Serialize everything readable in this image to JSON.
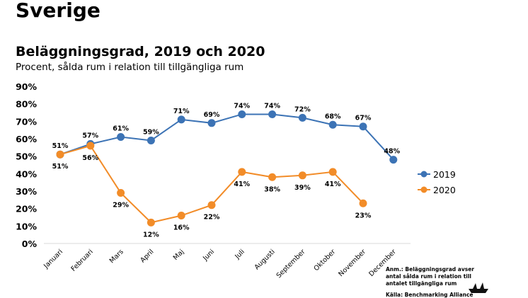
{
  "page": {
    "title": "Sverige",
    "note": "Anm.: Beläggningsgrad avser antal sålda rum i relation till antalet tillgängliga rum",
    "source": "Källa: Benchmarking Alliance"
  },
  "chart_data": {
    "type": "line",
    "title": "Beläggningsgrad, 2019 och 2020",
    "subtitle": "Procent, sålda rum i relation till tillgängliga rum",
    "categories": [
      "Januari",
      "Februari",
      "Mars",
      "April",
      "Maj",
      "Juni",
      "Juli",
      "Augusti",
      "September",
      "Oktober",
      "November",
      "December"
    ],
    "yticks": [
      "0%",
      "10%",
      "20%",
      "30%",
      "40%",
      "50%",
      "60%",
      "70%",
      "80%",
      "90%"
    ],
    "ylim": [
      0,
      90
    ],
    "grid": false,
    "legend": "right",
    "series": [
      {
        "name": "2019",
        "color": "#3c73b5",
        "values": [
          51,
          57,
          61,
          59,
          71,
          69,
          74,
          74,
          72,
          68,
          67,
          48
        ]
      },
      {
        "name": "2020",
        "color": "#f28c28",
        "values": [
          51,
          56,
          29,
          12,
          16,
          22,
          41,
          38,
          39,
          41,
          23,
          null
        ]
      }
    ]
  }
}
